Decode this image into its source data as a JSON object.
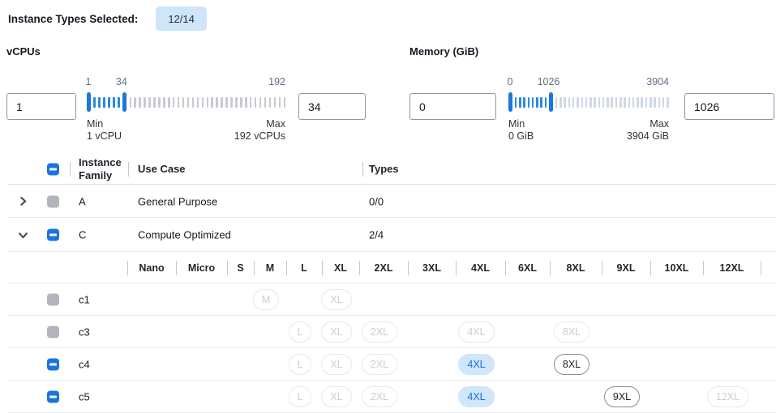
{
  "topbar": {
    "label": "Instance Types Selected:",
    "count": "12/14"
  },
  "filters": {
    "vcpus": {
      "title": "vCPUs",
      "from_value": "1",
      "to_value": "34",
      "scale_from": "1",
      "scale_to": "34",
      "scale_max": "192",
      "min_num": 1,
      "max_num": 192,
      "from_num": 1,
      "to_num": 34,
      "min_label": "Min",
      "min_detail": "1 vCPU",
      "max_label": "Max",
      "max_detail": "192 vCPUs"
    },
    "memory": {
      "title": "Memory (GiB)",
      "from_value": "0",
      "to_value": "1026",
      "scale_from": "0",
      "scale_to": "1026",
      "scale_max": "3904",
      "min_num": 0,
      "max_num": 3904,
      "from_num": 0,
      "to_num": 1026,
      "min_label": "Min",
      "min_detail": "0 GiB",
      "max_label": "Max",
      "max_detail": "3904 GiB"
    }
  },
  "table": {
    "headers": {
      "family": "Instance Family",
      "use_case": "Use Case",
      "types": "Types"
    },
    "header_checkbox": "indeterminate",
    "family_rows": [
      {
        "family": "A",
        "use_case": "General Purpose",
        "types": "0/0",
        "expanded": false,
        "checkbox": "disabled"
      },
      {
        "family": "C",
        "use_case": "Compute Optimized",
        "types": "2/4",
        "expanded": true,
        "checkbox": "indeterminate"
      }
    ],
    "size_columns": [
      "Nano",
      "Micro",
      "S",
      "M",
      "L",
      "XL",
      "2XL",
      "3XL",
      "4XL",
      "6XL",
      "8XL",
      "9XL",
      "10XL",
      "12XL"
    ],
    "type_rows": [
      {
        "name": "c1",
        "checkbox": "disabled",
        "pills": [
          {
            "size": "M",
            "state": "disabled"
          },
          {
            "size": "XL",
            "state": "disabled"
          }
        ]
      },
      {
        "name": "c3",
        "checkbox": "disabled",
        "pills": [
          {
            "size": "L",
            "state": "disabled"
          },
          {
            "size": "XL",
            "state": "disabled"
          },
          {
            "size": "2XL",
            "state": "disabled"
          },
          {
            "size": "4XL",
            "state": "disabled"
          },
          {
            "size": "8XL",
            "state": "disabled"
          }
        ]
      },
      {
        "name": "c4",
        "checkbox": "indeterminate",
        "pills": [
          {
            "size": "L",
            "state": "disabled"
          },
          {
            "size": "XL",
            "state": "disabled"
          },
          {
            "size": "2XL",
            "state": "disabled"
          },
          {
            "size": "4XL",
            "state": "selected"
          },
          {
            "size": "8XL",
            "state": "available"
          }
        ]
      },
      {
        "name": "c5",
        "checkbox": "indeterminate",
        "pills": [
          {
            "size": "L",
            "state": "disabled"
          },
          {
            "size": "XL",
            "state": "disabled"
          },
          {
            "size": "2XL",
            "state": "disabled"
          },
          {
            "size": "4XL",
            "state": "selected"
          },
          {
            "size": "9XL",
            "state": "available"
          },
          {
            "size": "12XL",
            "state": "disabled"
          }
        ]
      }
    ]
  },
  "colors": {
    "accent_blue": "#1a74e0",
    "selected_pill_bg": "#cfe6fb",
    "badge_bg": "#cfe5fa",
    "disabled_gray": "#b2b6bc"
  }
}
